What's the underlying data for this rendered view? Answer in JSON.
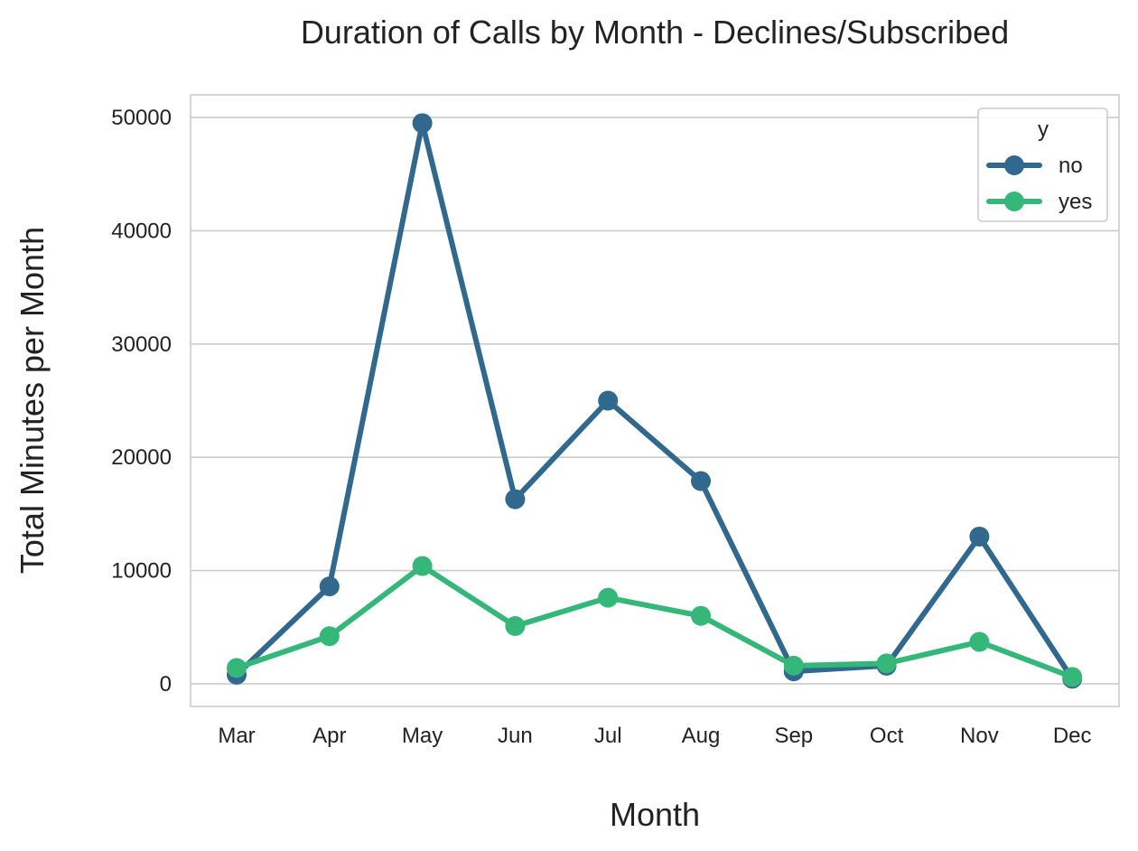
{
  "chart_data": {
    "type": "line",
    "title": "Duration of Calls by Month - Declines/Subscribed",
    "xlabel": "Month",
    "ylabel": "Total Minutes per Month",
    "categories": [
      "Mar",
      "Apr",
      "May",
      "Jun",
      "Jul",
      "Aug",
      "Sep",
      "Oct",
      "Nov",
      "Dec"
    ],
    "ylim": [
      -2000,
      52000
    ],
    "yticks": [
      0,
      10000,
      20000,
      30000,
      40000,
      50000
    ],
    "ytick_labels": [
      "0",
      "10000",
      "20000",
      "30000",
      "40000",
      "50000"
    ],
    "grid": "horizontal",
    "markers": true,
    "legend": {
      "title": "y",
      "placement": "top-right"
    },
    "series": [
      {
        "name": "no",
        "color": "#31688e",
        "values": [
          800,
          8600,
          49500,
          16300,
          25000,
          17900,
          1100,
          1600,
          13000,
          450
        ]
      },
      {
        "name": "yes",
        "color": "#35b779",
        "values": [
          1400,
          4200,
          10400,
          5100,
          7600,
          6000,
          1600,
          1800,
          3700,
          600
        ]
      }
    ]
  }
}
